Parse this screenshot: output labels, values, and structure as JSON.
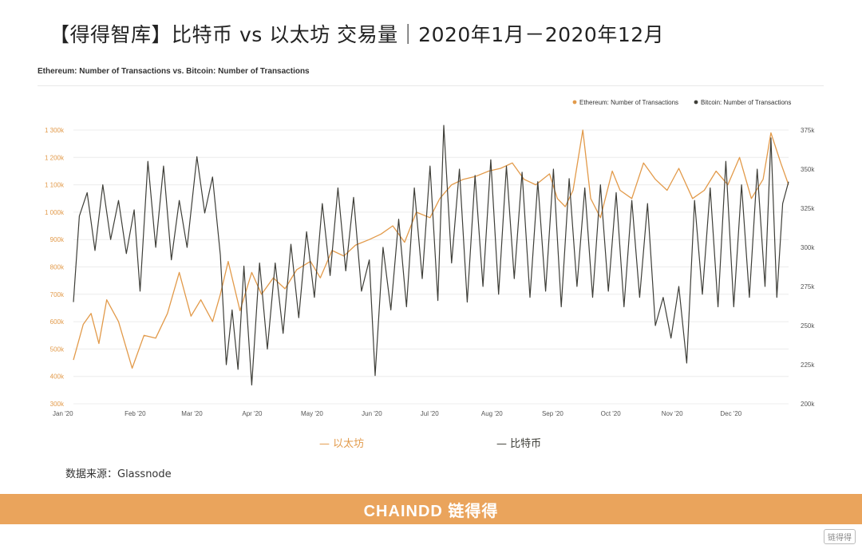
{
  "page": {
    "title": "【得得智库】比特币 vs 以太坊 交易量｜2020年1月－2020年12月",
    "source": "数据来源：Glassnode",
    "footer_logo": "CHAINDD 链得得",
    "corner_badge": "链得得"
  },
  "legend_bottom": {
    "eth": "— 以太坊",
    "btc": "— 比特币"
  },
  "colors": {
    "ethereum": "#e29a4a",
    "bitcoin": "#3e3e38",
    "footer": "#eaa45c",
    "grid": "#ececec"
  },
  "chart_data": {
    "type": "line",
    "title": "Ethereum: Number of Transactions vs. Bitcoin: Number of Transactions",
    "x_range": [
      "2020-01-01",
      "2020-12-31"
    ],
    "x_ticks": [
      "Jan '20",
      "Feb '20",
      "Mar '20",
      "Apr '20",
      "May '20",
      "Jun '20",
      "Jul '20",
      "Aug '20",
      "Sep '20",
      "Oct '20",
      "Nov '20",
      "Dec '20"
    ],
    "y_left": {
      "min": 300000,
      "max": 1300000,
      "ticks": [
        "300k",
        "400k",
        "500k",
        "600k",
        "700k",
        "800k",
        "900k",
        "1 000k",
        "1 100k",
        "1 200k",
        "1 300k"
      ]
    },
    "y_right": {
      "min": 200000,
      "max": 375000,
      "ticks": [
        "200k",
        "225k",
        "250k",
        "275k",
        "300k",
        "325k",
        "350k",
        "375k"
      ]
    },
    "legend_position": "top-right",
    "series": [
      {
        "name": "Ethereum: Number of Transactions",
        "axis": "left",
        "points": [
          [
            "2020-01-01",
            460000
          ],
          [
            "2020-01-06",
            590000
          ],
          [
            "2020-01-10",
            630000
          ],
          [
            "2020-01-14",
            520000
          ],
          [
            "2020-01-18",
            680000
          ],
          [
            "2020-01-24",
            600000
          ],
          [
            "2020-01-31",
            430000
          ],
          [
            "2020-02-06",
            550000
          ],
          [
            "2020-02-12",
            540000
          ],
          [
            "2020-02-18",
            630000
          ],
          [
            "2020-02-24",
            780000
          ],
          [
            "2020-03-01",
            620000
          ],
          [
            "2020-03-06",
            680000
          ],
          [
            "2020-03-12",
            600000
          ],
          [
            "2020-03-16",
            700000
          ],
          [
            "2020-03-20",
            820000
          ],
          [
            "2020-03-26",
            640000
          ],
          [
            "2020-04-01",
            780000
          ],
          [
            "2020-04-06",
            700000
          ],
          [
            "2020-04-12",
            760000
          ],
          [
            "2020-04-18",
            720000
          ],
          [
            "2020-04-24",
            790000
          ],
          [
            "2020-05-01",
            820000
          ],
          [
            "2020-05-06",
            760000
          ],
          [
            "2020-05-12",
            860000
          ],
          [
            "2020-05-18",
            840000
          ],
          [
            "2020-05-24",
            880000
          ],
          [
            "2020-05-31",
            900000
          ],
          [
            "2020-06-06",
            920000
          ],
          [
            "2020-06-12",
            950000
          ],
          [
            "2020-06-18",
            890000
          ],
          [
            "2020-06-24",
            1000000
          ],
          [
            "2020-07-01",
            980000
          ],
          [
            "2020-07-06",
            1050000
          ],
          [
            "2020-07-12",
            1100000
          ],
          [
            "2020-07-18",
            1120000
          ],
          [
            "2020-07-24",
            1130000
          ],
          [
            "2020-07-31",
            1150000
          ],
          [
            "2020-08-06",
            1160000
          ],
          [
            "2020-08-12",
            1180000
          ],
          [
            "2020-08-18",
            1120000
          ],
          [
            "2020-08-24",
            1100000
          ],
          [
            "2020-08-31",
            1140000
          ],
          [
            "2020-09-04",
            1050000
          ],
          [
            "2020-09-08",
            1020000
          ],
          [
            "2020-09-12",
            1080000
          ],
          [
            "2020-09-17",
            1300000
          ],
          [
            "2020-09-21",
            1050000
          ],
          [
            "2020-09-26",
            980000
          ],
          [
            "2020-10-02",
            1150000
          ],
          [
            "2020-10-06",
            1080000
          ],
          [
            "2020-10-12",
            1050000
          ],
          [
            "2020-10-18",
            1180000
          ],
          [
            "2020-10-24",
            1120000
          ],
          [
            "2020-10-30",
            1080000
          ],
          [
            "2020-11-05",
            1160000
          ],
          [
            "2020-11-12",
            1050000
          ],
          [
            "2020-11-18",
            1080000
          ],
          [
            "2020-11-24",
            1150000
          ],
          [
            "2020-11-30",
            1100000
          ],
          [
            "2020-12-06",
            1200000
          ],
          [
            "2020-12-12",
            1050000
          ],
          [
            "2020-12-18",
            1120000
          ],
          [
            "2020-12-22",
            1290000
          ],
          [
            "2020-12-27",
            1180000
          ],
          [
            "2020-12-31",
            1100000
          ]
        ]
      },
      {
        "name": "Bitcoin: Number of Transactions",
        "axis": "right",
        "points": [
          [
            "2020-01-01",
            265000
          ],
          [
            "2020-01-04",
            320000
          ],
          [
            "2020-01-08",
            335000
          ],
          [
            "2020-01-12",
            298000
          ],
          [
            "2020-01-16",
            340000
          ],
          [
            "2020-01-20",
            305000
          ],
          [
            "2020-01-24",
            330000
          ],
          [
            "2020-01-28",
            296000
          ],
          [
            "2020-02-01",
            324000
          ],
          [
            "2020-02-04",
            272000
          ],
          [
            "2020-02-08",
            355000
          ],
          [
            "2020-02-12",
            300000
          ],
          [
            "2020-02-16",
            352000
          ],
          [
            "2020-02-20",
            292000
          ],
          [
            "2020-02-24",
            330000
          ],
          [
            "2020-02-28",
            300000
          ],
          [
            "2020-03-04",
            358000
          ],
          [
            "2020-03-08",
            322000
          ],
          [
            "2020-03-12",
            345000
          ],
          [
            "2020-03-16",
            295000
          ],
          [
            "2020-03-19",
            225000
          ],
          [
            "2020-03-22",
            260000
          ],
          [
            "2020-03-25",
            222000
          ],
          [
            "2020-03-28",
            288000
          ],
          [
            "2020-04-01",
            212000
          ],
          [
            "2020-04-05",
            290000
          ],
          [
            "2020-04-09",
            235000
          ],
          [
            "2020-04-13",
            290000
          ],
          [
            "2020-04-17",
            245000
          ],
          [
            "2020-04-21",
            302000
          ],
          [
            "2020-04-25",
            255000
          ],
          [
            "2020-04-29",
            310000
          ],
          [
            "2020-05-03",
            268000
          ],
          [
            "2020-05-07",
            328000
          ],
          [
            "2020-05-11",
            282000
          ],
          [
            "2020-05-15",
            338000
          ],
          [
            "2020-05-19",
            285000
          ],
          [
            "2020-05-23",
            332000
          ],
          [
            "2020-05-27",
            272000
          ],
          [
            "2020-05-31",
            292000
          ],
          [
            "2020-06-03",
            218000
          ],
          [
            "2020-06-07",
            300000
          ],
          [
            "2020-06-11",
            260000
          ],
          [
            "2020-06-15",
            318000
          ],
          [
            "2020-06-19",
            262000
          ],
          [
            "2020-06-23",
            338000
          ],
          [
            "2020-06-27",
            280000
          ],
          [
            "2020-07-01",
            352000
          ],
          [
            "2020-07-05",
            266000
          ],
          [
            "2020-07-08",
            378000
          ],
          [
            "2020-07-12",
            290000
          ],
          [
            "2020-07-16",
            350000
          ],
          [
            "2020-07-20",
            265000
          ],
          [
            "2020-07-24",
            346000
          ],
          [
            "2020-07-28",
            275000
          ],
          [
            "2020-08-01",
            356000
          ],
          [
            "2020-08-05",
            270000
          ],
          [
            "2020-08-09",
            352000
          ],
          [
            "2020-08-13",
            280000
          ],
          [
            "2020-08-17",
            348000
          ],
          [
            "2020-08-21",
            268000
          ],
          [
            "2020-08-25",
            342000
          ],
          [
            "2020-08-29",
            272000
          ],
          [
            "2020-09-02",
            350000
          ],
          [
            "2020-09-06",
            262000
          ],
          [
            "2020-09-10",
            344000
          ],
          [
            "2020-09-14",
            275000
          ],
          [
            "2020-09-18",
            338000
          ],
          [
            "2020-09-22",
            268000
          ],
          [
            "2020-09-26",
            340000
          ],
          [
            "2020-09-30",
            272000
          ],
          [
            "2020-10-04",
            335000
          ],
          [
            "2020-10-08",
            262000
          ],
          [
            "2020-10-12",
            330000
          ],
          [
            "2020-10-16",
            268000
          ],
          [
            "2020-10-20",
            328000
          ],
          [
            "2020-10-24",
            250000
          ],
          [
            "2020-10-28",
            268000
          ],
          [
            "2020-11-01",
            242000
          ],
          [
            "2020-11-05",
            275000
          ],
          [
            "2020-11-09",
            226000
          ],
          [
            "2020-11-13",
            330000
          ],
          [
            "2020-11-17",
            270000
          ],
          [
            "2020-11-21",
            338000
          ],
          [
            "2020-11-25",
            262000
          ],
          [
            "2020-11-29",
            355000
          ],
          [
            "2020-12-03",
            262000
          ],
          [
            "2020-12-07",
            340000
          ],
          [
            "2020-12-11",
            268000
          ],
          [
            "2020-12-15",
            350000
          ],
          [
            "2020-12-19",
            275000
          ],
          [
            "2020-12-22",
            370000
          ],
          [
            "2020-12-25",
            268000
          ],
          [
            "2020-12-28",
            328000
          ],
          [
            "2020-12-31",
            342000
          ]
        ]
      }
    ]
  }
}
